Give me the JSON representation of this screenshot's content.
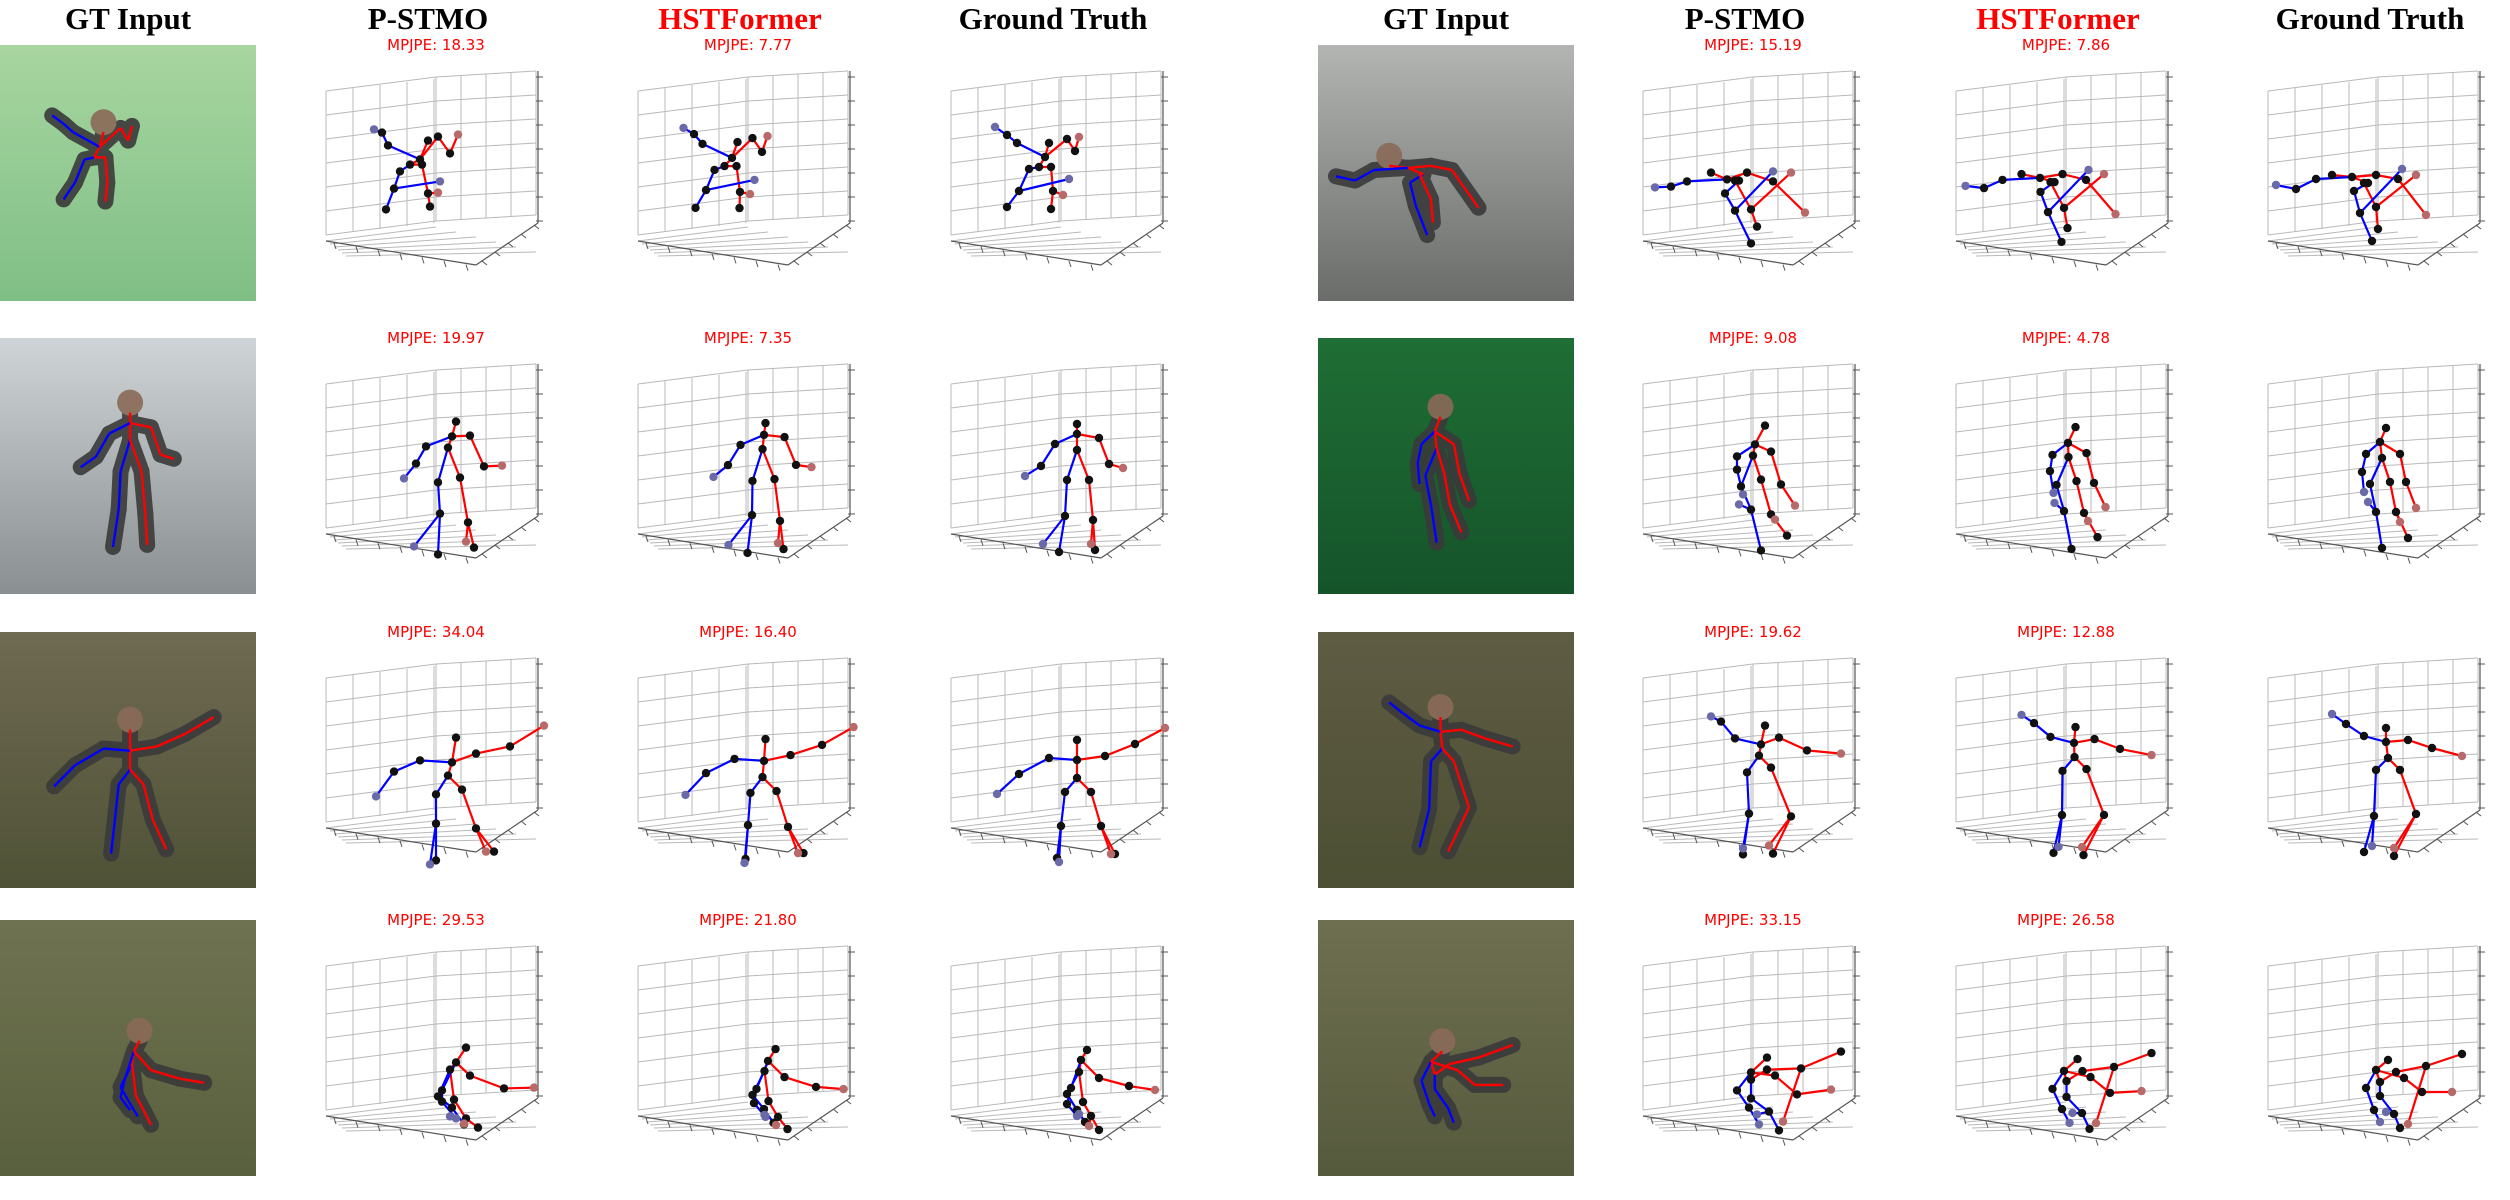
{
  "headers": [
    "GT Input",
    "P-STMO",
    "HSTFormer",
    "Ground Truth",
    "GT Input",
    "P-STMO",
    "HSTFormer",
    "Ground Truth"
  ],
  "accent_header_color": "#ff0000",
  "metric_color": "#ff0000",
  "bone_colors": {
    "left": "#0000ff",
    "right": "#ff0000"
  },
  "rows": [
    {
      "left": {
        "pstmo": "MPJPE: 18.33",
        "hstformer": "MPJPE: 7.77"
      },
      "right": {
        "pstmo": "MPJPE: 15.19",
        "hstformer": "MPJPE: 7.86"
      }
    },
    {
      "left": {
        "pstmo": "MPJPE: 19.97",
        "hstformer": "MPJPE: 7.35"
      },
      "right": {
        "pstmo": "MPJPE: 9.08",
        "hstformer": "MPJPE: 4.78"
      }
    },
    {
      "left": {
        "pstmo": "MPJPE: 34.04",
        "hstformer": "MPJPE: 16.40"
      },
      "right": {
        "pstmo": "MPJPE: 19.62",
        "hstformer": "MPJPE: 12.88"
      }
    },
    {
      "left": {
        "pstmo": "MPJPE: 29.53",
        "hstformer": "MPJPE: 21.80"
      },
      "right": {
        "pstmo": "MPJPE: 33.15",
        "hstformer": "MPJPE: 26.58"
      }
    }
  ]
}
